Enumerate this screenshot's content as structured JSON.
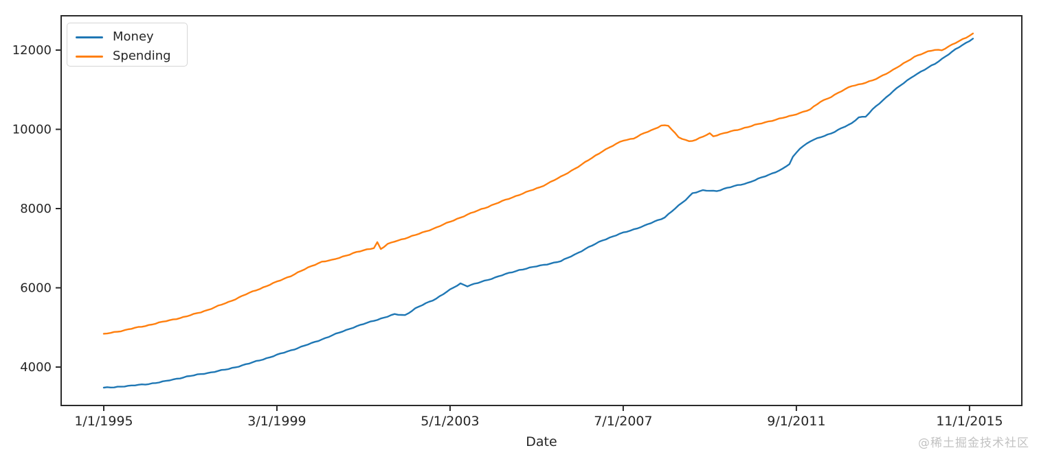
{
  "chart_data": {
    "type": "line",
    "title": "",
    "xlabel": "Date",
    "ylabel": "",
    "x_unit": "months since 1/1/1995 (monthly series, Jan 1995 - Dec 2015)",
    "grid": false,
    "legend_position": "upper left",
    "xlim_months": [
      -12.3,
      265.1
    ],
    "ylim": [
      3030,
      12866
    ],
    "yticks": [
      4000,
      6000,
      8000,
      10000,
      12000
    ],
    "xticks": [
      {
        "month": 0,
        "label": "1/1/1995"
      },
      {
        "month": 50,
        "label": "3/1/1999"
      },
      {
        "month": 100,
        "label": "5/1/2003"
      },
      {
        "month": 150,
        "label": "7/1/2007"
      },
      {
        "month": 200,
        "label": "9/1/2011"
      },
      {
        "month": 250,
        "label": "11/1/2015"
      }
    ],
    "series": [
      {
        "name": "Money",
        "color": "#1f77b4",
        "points": [
          [
            0,
            3480
          ],
          [
            3,
            3485
          ],
          [
            6,
            3520
          ],
          [
            12,
            3560
          ],
          [
            18,
            3645
          ],
          [
            24,
            3760
          ],
          [
            30,
            3850
          ],
          [
            36,
            3950
          ],
          [
            42,
            4090
          ],
          [
            48,
            4250
          ],
          [
            54,
            4420
          ],
          [
            60,
            4600
          ],
          [
            66,
            4800
          ],
          [
            72,
            5000
          ],
          [
            78,
            5170
          ],
          [
            84,
            5330
          ],
          [
            87,
            5310
          ],
          [
            90,
            5480
          ],
          [
            96,
            5730
          ],
          [
            100,
            5950
          ],
          [
            103,
            6110
          ],
          [
            105,
            6045
          ],
          [
            108,
            6120
          ],
          [
            114,
            6290
          ],
          [
            120,
            6450
          ],
          [
            126,
            6560
          ],
          [
            132,
            6670
          ],
          [
            138,
            6930
          ],
          [
            144,
            7200
          ],
          [
            150,
            7390
          ],
          [
            156,
            7560
          ],
          [
            162,
            7780
          ],
          [
            165,
            8000
          ],
          [
            168,
            8220
          ],
          [
            170,
            8390
          ],
          [
            173,
            8455
          ],
          [
            177,
            8445
          ],
          [
            180,
            8520
          ],
          [
            186,
            8650
          ],
          [
            192,
            8850
          ],
          [
            196,
            9000
          ],
          [
            198,
            9120
          ],
          [
            199,
            9300
          ],
          [
            201,
            9520
          ],
          [
            204,
            9700
          ],
          [
            210,
            9900
          ],
          [
            216,
            10150
          ],
          [
            218,
            10310
          ],
          [
            220,
            10320
          ],
          [
            222,
            10500
          ],
          [
            228,
            10970
          ],
          [
            234,
            11360
          ],
          [
            240,
            11650
          ],
          [
            243,
            11840
          ],
          [
            246,
            12020
          ],
          [
            249,
            12180
          ],
          [
            251,
            12290
          ]
        ]
      },
      {
        "name": "Spending",
        "color": "#ff7f0e",
        "points": [
          [
            0,
            4830
          ],
          [
            6,
            4930
          ],
          [
            12,
            5040
          ],
          [
            18,
            5160
          ],
          [
            24,
            5280
          ],
          [
            30,
            5440
          ],
          [
            36,
            5640
          ],
          [
            42,
            5870
          ],
          [
            48,
            6080
          ],
          [
            54,
            6300
          ],
          [
            60,
            6550
          ],
          [
            63,
            6660
          ],
          [
            66,
            6700
          ],
          [
            72,
            6875
          ],
          [
            78,
            7010
          ],
          [
            79,
            7150
          ],
          [
            80,
            6980
          ],
          [
            82,
            7100
          ],
          [
            84,
            7170
          ],
          [
            90,
            7330
          ],
          [
            96,
            7520
          ],
          [
            102,
            7740
          ],
          [
            108,
            7950
          ],
          [
            114,
            8150
          ],
          [
            120,
            8350
          ],
          [
            126,
            8540
          ],
          [
            132,
            8800
          ],
          [
            138,
            9110
          ],
          [
            144,
            9450
          ],
          [
            150,
            9720
          ],
          [
            153,
            9770
          ],
          [
            156,
            9900
          ],
          [
            159,
            10010
          ],
          [
            161,
            10100
          ],
          [
            163,
            10090
          ],
          [
            166,
            9800
          ],
          [
            169,
            9700
          ],
          [
            171,
            9730
          ],
          [
            175,
            9900
          ],
          [
            176,
            9830
          ],
          [
            180,
            9920
          ],
          [
            186,
            10060
          ],
          [
            192,
            10200
          ],
          [
            198,
            10330
          ],
          [
            204,
            10500
          ],
          [
            207,
            10700
          ],
          [
            210,
            10820
          ],
          [
            216,
            11100
          ],
          [
            219,
            11150
          ],
          [
            222,
            11230
          ],
          [
            228,
            11500
          ],
          [
            234,
            11830
          ],
          [
            238,
            11960
          ],
          [
            240,
            12010
          ],
          [
            242,
            12000
          ],
          [
            246,
            12180
          ],
          [
            249,
            12320
          ],
          [
            251,
            12420
          ]
        ]
      }
    ]
  },
  "watermark": {
    "text": "@稀土掘金技术社区",
    "color": "#c2c2c2"
  }
}
